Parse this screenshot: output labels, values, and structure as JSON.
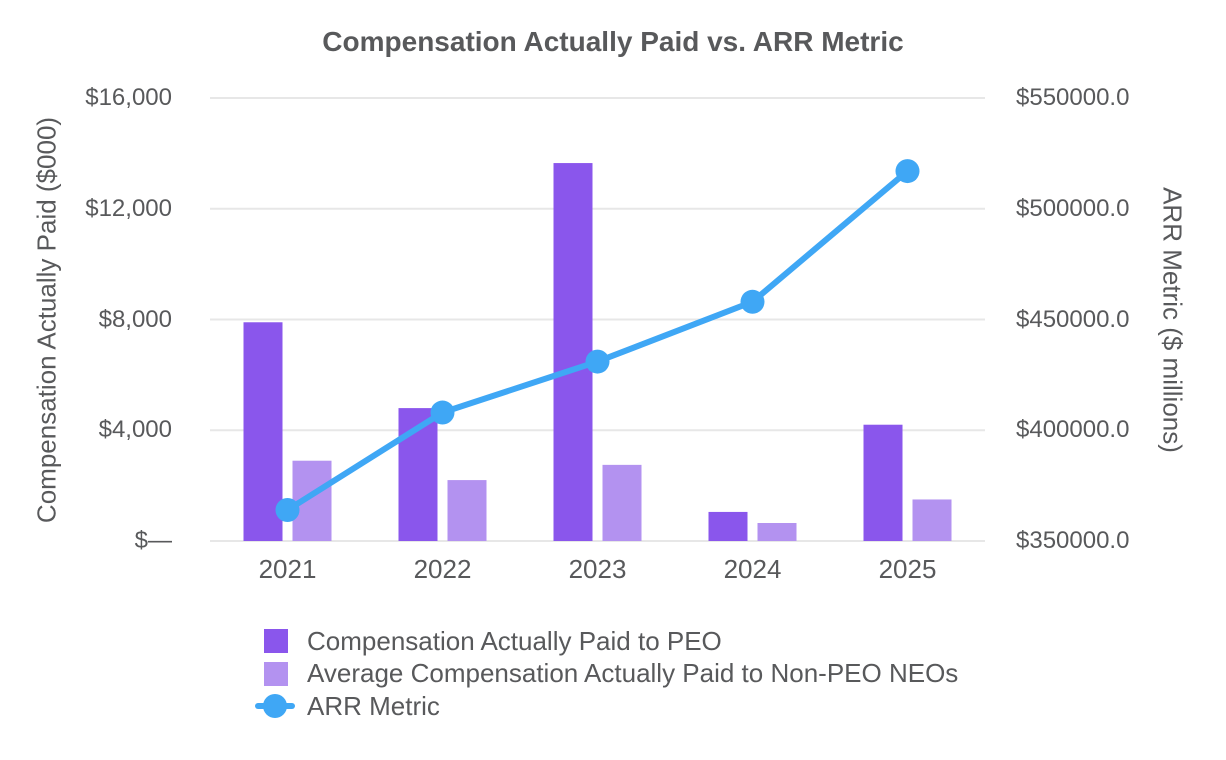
{
  "title": "Compensation Actually Paid vs. ARR Metric",
  "chart_data": {
    "type": "bar",
    "subtype": "grouped-bars-with-line-overlay",
    "title": "Compensation Actually Paid vs. ARR Metric",
    "categories": [
      "2021",
      "2022",
      "2023",
      "2024",
      "2025"
    ],
    "series": [
      {
        "name": "Compensation Actually Paid to PEO",
        "type": "bar",
        "axis": "left",
        "color": "#8A56EC",
        "values": [
          7900,
          4800,
          13650,
          1050,
          4200
        ]
      },
      {
        "name": "Average Compensation Actually Paid to Non-PEO NEOs",
        "type": "bar",
        "axis": "left",
        "color": "#B392F0",
        "values": [
          2900,
          2200,
          2750,
          650,
          1500
        ]
      },
      {
        "name": "ARR Metric",
        "type": "line",
        "axis": "right",
        "color": "#3FA7F5",
        "values": [
          364000,
          408000,
          431000,
          458000,
          517000
        ]
      }
    ],
    "left_axis": {
      "label": "Compensation Actually Paid ($000)",
      "range": [
        0,
        16000
      ],
      "tick_values": [
        16000,
        12000,
        8000,
        4000,
        0
      ],
      "tick_labels": [
        "$16,000",
        "$12,000",
        "$8,000",
        "$4,000",
        "$—"
      ]
    },
    "right_axis": {
      "label": "ARR Metric ($ millions)",
      "range": [
        350000,
        550000
      ],
      "tick_values": [
        550000,
        500000,
        450000,
        400000,
        350000
      ],
      "tick_labels": [
        "$550000.0",
        "$500000.0",
        "$450000.0",
        "$400000.0",
        "$350000.0"
      ]
    },
    "grid": true,
    "legend_position": "bottom-left",
    "legend": [
      "Compensation Actually Paid to PEO",
      "Average Compensation Actually Paid to Non-PEO NEOs",
      "ARR Metric"
    ]
  },
  "colors": {
    "bar_peo": "#8A56EC",
    "bar_non_peo": "#B392F0",
    "line_arr": "#3FA7F5",
    "text": "#58595B",
    "gridline": "#E7E7E7",
    "background": "#FFFFFF"
  }
}
